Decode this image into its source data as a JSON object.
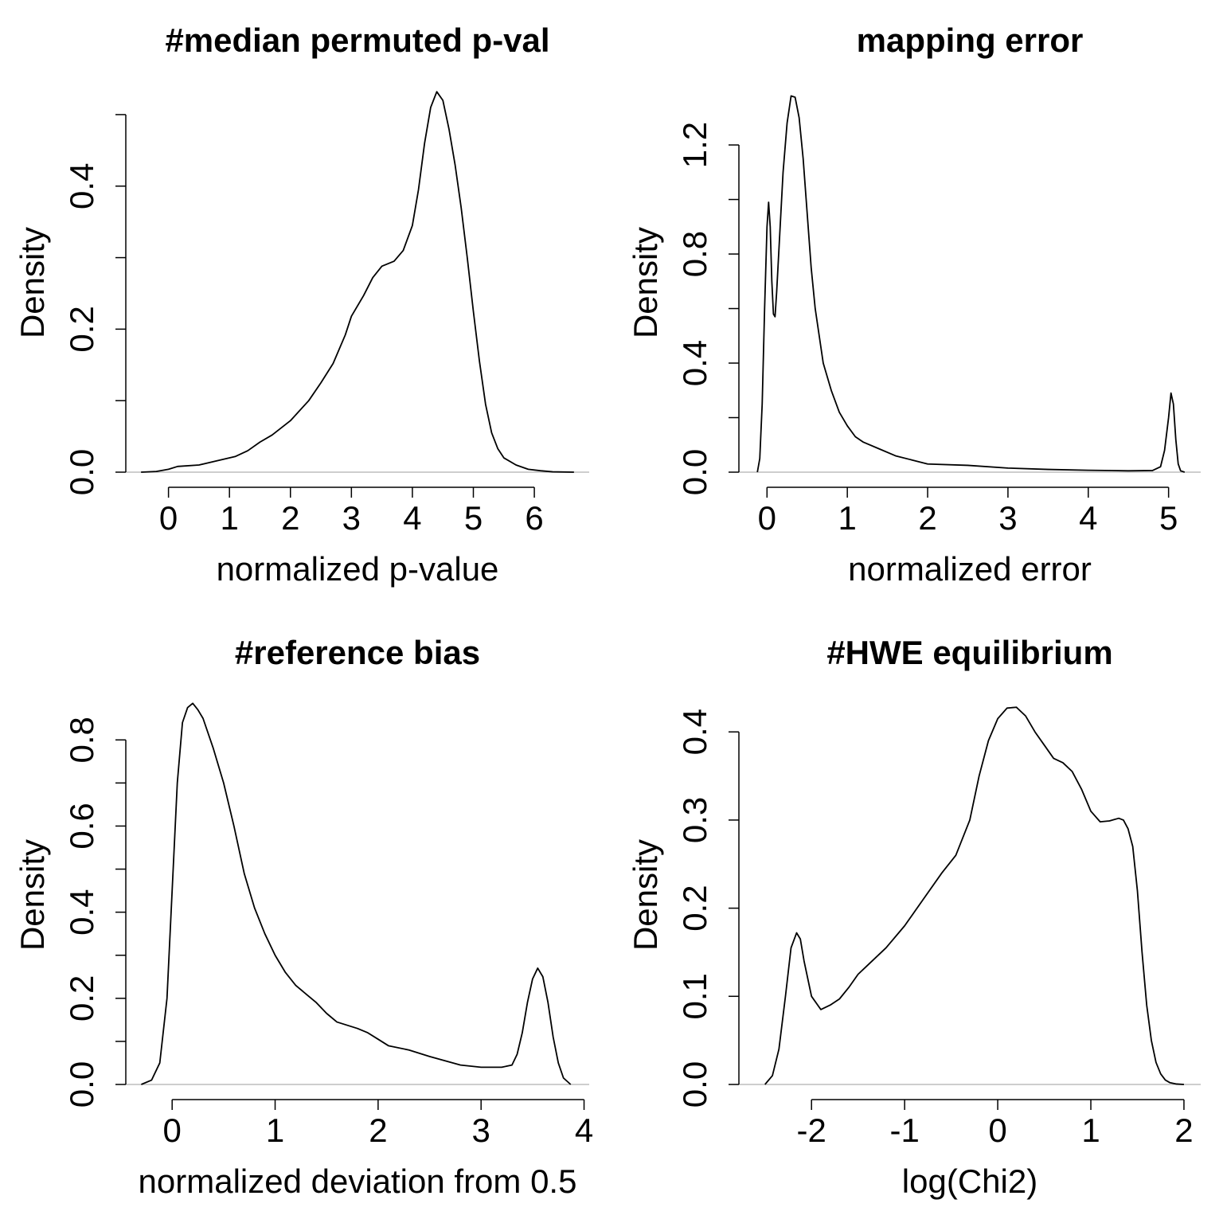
{
  "chart_data": [
    {
      "type": "line",
      "title": "#median permuted p-val",
      "xlabel": "normalized p-value",
      "ylabel": "Density",
      "xlim": [
        -0.7,
        6.9
      ],
      "ylim": [
        0,
        0.53
      ],
      "x_ticks": [
        0,
        1,
        2,
        3,
        4,
        5,
        6
      ],
      "x_tick_labels": [
        "0",
        "1",
        "2",
        "3",
        "4",
        "5",
        "6"
      ],
      "y_ticks": [
        0,
        0.1,
        0.2,
        0.3,
        0.4,
        0.5
      ],
      "y_tick_labels": [
        "0.0",
        "",
        "0.2",
        "",
        "0.4",
        ""
      ],
      "baseline": true,
      "series": [
        {
          "x": [
            -0.45,
            -0.2,
            0,
            0.15,
            0.5,
            0.8,
            1.1,
            1.3,
            1.5,
            1.7,
            2.0,
            2.3,
            2.5,
            2.7,
            2.9,
            3.0,
            3.2,
            3.35,
            3.5,
            3.7,
            3.85,
            4.0,
            4.1,
            4.2,
            4.3,
            4.4,
            4.5,
            4.6,
            4.7,
            4.8,
            4.9,
            5.0,
            5.1,
            5.2,
            5.3,
            5.4,
            5.5,
            5.7,
            5.9,
            6.1,
            6.3,
            6.65
          ],
          "y": [
            0,
            0.001,
            0.004,
            0.008,
            0.01,
            0.016,
            0.022,
            0.03,
            0.042,
            0.052,
            0.072,
            0.1,
            0.125,
            0.152,
            0.192,
            0.218,
            0.247,
            0.272,
            0.288,
            0.295,
            0.31,
            0.345,
            0.395,
            0.46,
            0.51,
            0.532,
            0.52,
            0.48,
            0.43,
            0.37,
            0.3,
            0.225,
            0.155,
            0.095,
            0.055,
            0.033,
            0.02,
            0.01,
            0.004,
            0.002,
            0.0005,
            0
          ]
        }
      ]
    },
    {
      "type": "line",
      "title": "mapping error",
      "xlabel": "normalized error",
      "ylabel": "Density",
      "xlim": [
        -0.35,
        5.4
      ],
      "ylim": [
        0,
        1.39
      ],
      "x_ticks": [
        0,
        1,
        2,
        3,
        4,
        5
      ],
      "x_tick_labels": [
        "0",
        "1",
        "2",
        "3",
        "4",
        "5"
      ],
      "y_ticks": [
        0,
        0.2,
        0.4,
        0.6,
        0.8,
        1.0,
        1.2
      ],
      "y_tick_labels": [
        "0.0",
        "",
        "0.4",
        "",
        "0.8",
        "",
        "1.2"
      ],
      "baseline": true,
      "series": [
        {
          "x": [
            -0.12,
            -0.09,
            -0.06,
            -0.03,
            0,
            0.02,
            0.04,
            0.06,
            0.08,
            0.1,
            0.12,
            0.16,
            0.2,
            0.25,
            0.3,
            0.35,
            0.4,
            0.45,
            0.5,
            0.55,
            0.6,
            0.7,
            0.8,
            0.9,
            1.0,
            1.1,
            1.2,
            1.4,
            1.6,
            1.8,
            2.0,
            2.5,
            3.0,
            3.5,
            4.0,
            4.5,
            4.8,
            4.9,
            4.95,
            5.0,
            5.03,
            5.06,
            5.09,
            5.12,
            5.15,
            5.2
          ],
          "y": [
            0,
            0.05,
            0.25,
            0.6,
            0.9,
            0.99,
            0.9,
            0.7,
            0.58,
            0.57,
            0.66,
            0.88,
            1.1,
            1.28,
            1.38,
            1.375,
            1.3,
            1.15,
            0.95,
            0.75,
            0.6,
            0.4,
            0.3,
            0.22,
            0.17,
            0.13,
            0.11,
            0.085,
            0.06,
            0.045,
            0.03,
            0.025,
            0.015,
            0.01,
            0.007,
            0.005,
            0.006,
            0.02,
            0.08,
            0.2,
            0.29,
            0.25,
            0.12,
            0.03,
            0.005,
            0
          ]
        }
      ]
    },
    {
      "type": "line",
      "title": "#reference bias",
      "xlabel": "normalized deviation from 0.5",
      "ylabel": "Density",
      "xlim": [
        -0.45,
        4.05
      ],
      "ylim": [
        0,
        0.88
      ],
      "x_ticks": [
        0,
        1,
        2,
        3,
        4
      ],
      "x_tick_labels": [
        "0",
        "1",
        "2",
        "3",
        "4"
      ],
      "y_ticks": [
        0,
        0.1,
        0.2,
        0.3,
        0.4,
        0.5,
        0.6,
        0.7,
        0.8
      ],
      "y_tick_labels": [
        "0.0",
        "",
        "0.2",
        "",
        "0.4",
        "",
        "0.6",
        "",
        "0.8"
      ],
      "baseline": true,
      "series": [
        {
          "x": [
            -0.3,
            -0.2,
            -0.12,
            -0.05,
            0,
            0.05,
            0.1,
            0.15,
            0.2,
            0.25,
            0.3,
            0.4,
            0.5,
            0.6,
            0.7,
            0.8,
            0.9,
            1.0,
            1.1,
            1.2,
            1.3,
            1.4,
            1.5,
            1.6,
            1.8,
            1.9,
            2.0,
            2.1,
            2.3,
            2.5,
            2.8,
            3.0,
            3.2,
            3.3,
            3.35,
            3.4,
            3.45,
            3.5,
            3.55,
            3.6,
            3.65,
            3.7,
            3.75,
            3.8,
            3.87
          ],
          "y": [
            0,
            0.01,
            0.05,
            0.2,
            0.45,
            0.7,
            0.84,
            0.875,
            0.885,
            0.87,
            0.85,
            0.78,
            0.7,
            0.6,
            0.49,
            0.41,
            0.35,
            0.3,
            0.26,
            0.23,
            0.21,
            0.19,
            0.165,
            0.145,
            0.13,
            0.12,
            0.105,
            0.09,
            0.08,
            0.065,
            0.045,
            0.04,
            0.04,
            0.045,
            0.07,
            0.12,
            0.19,
            0.245,
            0.27,
            0.25,
            0.19,
            0.11,
            0.05,
            0.015,
            0
          ]
        }
      ]
    },
    {
      "type": "line",
      "title": "#HWE equilibrium",
      "xlabel": "log(Chi2)",
      "ylabel": "Density",
      "xlim": [
        -2.78,
        2.18
      ],
      "ylim": [
        0,
        0.43
      ],
      "x_ticks": [
        -2,
        -1,
        0,
        1,
        2
      ],
      "x_tick_labels": [
        "-2",
        "-1",
        "0",
        "1",
        "2"
      ],
      "y_ticks": [
        0,
        0.1,
        0.2,
        0.3,
        0.4
      ],
      "y_tick_labels": [
        "0.0",
        "0.1",
        "0.2",
        "0.3",
        "0.4"
      ],
      "baseline": true,
      "series": [
        {
          "x": [
            -2.5,
            -2.42,
            -2.35,
            -2.28,
            -2.22,
            -2.16,
            -2.12,
            -2.08,
            -2.0,
            -1.9,
            -1.8,
            -1.7,
            -1.6,
            -1.5,
            -1.4,
            -1.2,
            -1.0,
            -0.8,
            -0.6,
            -0.45,
            -0.3,
            -0.2,
            -0.1,
            0,
            0.1,
            0.2,
            0.3,
            0.4,
            0.5,
            0.6,
            0.7,
            0.8,
            0.9,
            1.0,
            1.1,
            1.2,
            1.3,
            1.35,
            1.4,
            1.45,
            1.5,
            1.55,
            1.6,
            1.65,
            1.7,
            1.75,
            1.8,
            1.85,
            1.92,
            2.0
          ],
          "y": [
            0,
            0.01,
            0.04,
            0.1,
            0.155,
            0.172,
            0.165,
            0.14,
            0.1,
            0.085,
            0.09,
            0.097,
            0.11,
            0.125,
            0.135,
            0.155,
            0.18,
            0.21,
            0.24,
            0.26,
            0.3,
            0.35,
            0.39,
            0.415,
            0.427,
            0.428,
            0.418,
            0.4,
            0.385,
            0.37,
            0.365,
            0.355,
            0.335,
            0.31,
            0.298,
            0.299,
            0.302,
            0.3,
            0.29,
            0.27,
            0.22,
            0.15,
            0.09,
            0.05,
            0.025,
            0.012,
            0.005,
            0.002,
            0.0005,
            0
          ]
        }
      ]
    }
  ]
}
